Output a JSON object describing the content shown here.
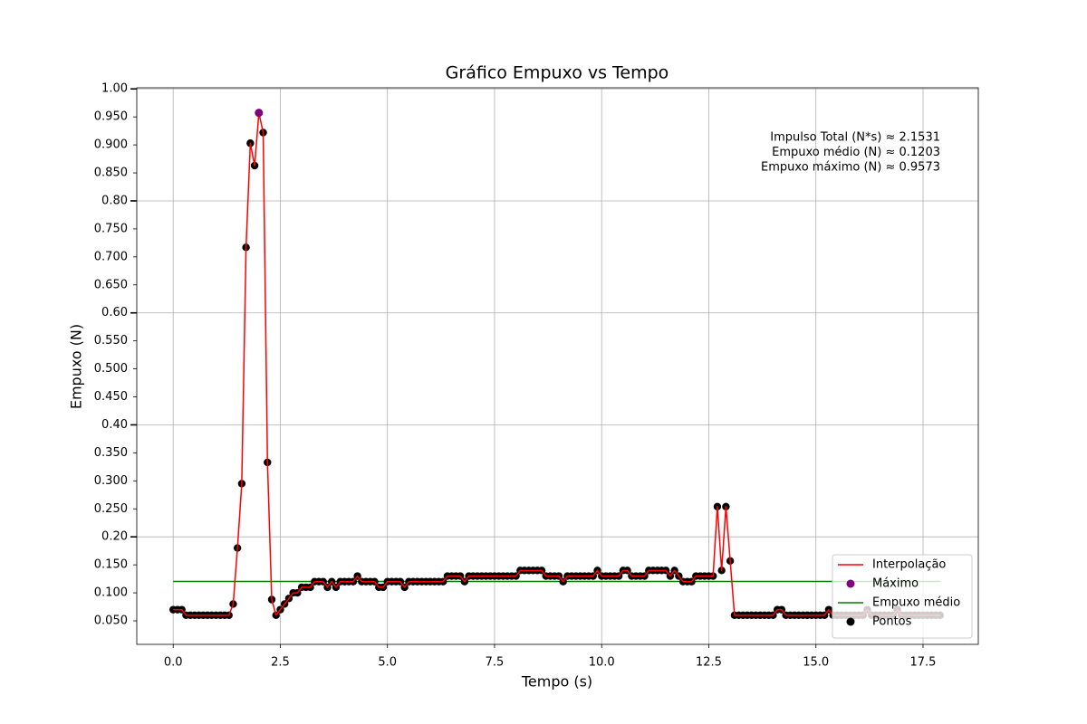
{
  "chart_data": {
    "type": "line",
    "title": "Gráfico Empuxo vs Tempo",
    "x_label": "Tempo (s)",
    "y_label": "Empuxo (N)",
    "annotations": [
      "Impulso Total (N*s) ≈ 2.1531",
      "Empuxo médio (N) ≈ 0.1203",
      "Empuxo máximo (N) ≈ 0.9573"
    ],
    "xlim": [
      -0.85,
      18.79
    ],
    "ylim": [
      0.008,
      1.002
    ],
    "xticks": [
      {
        "value": 0,
        "label": "0.0"
      },
      {
        "value": 2.5,
        "label": "2.5"
      },
      {
        "value": 5,
        "label": "5.0"
      },
      {
        "value": 7.5,
        "label": "7.5"
      },
      {
        "value": 10,
        "label": "10.0"
      },
      {
        "value": 12.5,
        "label": "12.5"
      },
      {
        "value": 15,
        "label": "15.0"
      },
      {
        "value": 17.5,
        "label": "17.5"
      }
    ],
    "yticks": [
      {
        "value": 0.05,
        "label": "0.050"
      },
      {
        "value": 0.1,
        "label": "0.100"
      },
      {
        "value": 0.15,
        "label": "0.150"
      },
      {
        "value": 0.2,
        "label": "0.20",
        "grid": true
      },
      {
        "value": 0.25,
        "label": "0.250"
      },
      {
        "value": 0.3,
        "label": "0.300"
      },
      {
        "value": 0.35,
        "label": "0.350"
      },
      {
        "value": 0.4,
        "label": "0.40",
        "grid": true
      },
      {
        "value": 0.45,
        "label": "0.450"
      },
      {
        "value": 0.5,
        "label": "0.500"
      },
      {
        "value": 0.55,
        "label": "0.550"
      },
      {
        "value": 0.6,
        "label": "0.60",
        "grid": true
      },
      {
        "value": 0.65,
        "label": "0.650"
      },
      {
        "value": 0.7,
        "label": "0.700"
      },
      {
        "value": 0.75,
        "label": "0.750"
      },
      {
        "value": 0.8,
        "label": "0.80",
        "grid": true
      },
      {
        "value": 0.85,
        "label": "0.850"
      },
      {
        "value": 0.9,
        "label": "0.900"
      },
      {
        "value": 0.95,
        "label": "0.950"
      },
      {
        "value": 1.0,
        "label": "1.00",
        "grid": true
      }
    ],
    "grid": true,
    "legend_position": "lower right",
    "series": [
      {
        "name": "Interpolação",
        "color": "#ff0000",
        "kind": "curve"
      },
      {
        "name": "Máximo",
        "color": "#800080",
        "kind": "marker",
        "x": [
          2.0
        ],
        "values": [
          0.9573
        ]
      },
      {
        "name": "Empuxo médio",
        "color": "#008000",
        "kind": "line",
        "x": [
          0,
          17.9
        ],
        "values": [
          0.1203,
          0.1203
        ]
      },
      {
        "name": "Pontos",
        "color": "#000000",
        "kind": "points",
        "x": [
          0,
          0.1,
          0.2,
          0.3,
          0.4,
          0.5,
          0.6,
          0.7,
          0.8,
          0.9,
          1,
          1.1,
          1.2,
          1.3,
          1.4,
          1.5,
          1.6,
          1.7,
          1.8,
          1.9,
          2,
          2.1,
          2.2,
          2.3,
          2.4,
          2.5,
          2.6,
          2.7,
          2.8,
          2.9,
          3,
          3.1,
          3.2,
          3.3,
          3.4,
          3.5,
          3.6,
          3.7,
          3.8,
          3.9,
          4,
          4.1,
          4.2,
          4.3,
          4.4,
          4.5,
          4.6,
          4.7,
          4.8,
          4.9,
          5,
          5.1,
          5.2,
          5.3,
          5.4,
          5.5,
          5.6,
          5.7,
          5.8,
          5.9,
          6,
          6.1,
          6.2,
          6.3,
          6.4,
          6.5,
          6.6,
          6.7,
          6.8,
          6.9,
          7,
          7.1,
          7.2,
          7.3,
          7.4,
          7.5,
          7.6,
          7.7,
          7.8,
          7.9,
          8,
          8.1,
          8.2,
          8.3,
          8.4,
          8.5,
          8.6,
          8.7,
          8.8,
          8.9,
          9,
          9.1,
          9.2,
          9.3,
          9.4,
          9.5,
          9.6,
          9.7,
          9.8,
          9.9,
          10,
          10.1,
          10.2,
          10.3,
          10.4,
          10.5,
          10.6,
          10.7,
          10.8,
          10.9,
          11,
          11.1,
          11.2,
          11.3,
          11.4,
          11.5,
          11.6,
          11.7,
          11.8,
          11.9,
          12,
          12.1,
          12.2,
          12.3,
          12.4,
          12.5,
          12.6,
          12.7,
          12.8,
          12.9,
          13,
          13.1,
          13.2,
          13.3,
          13.4,
          13.5,
          13.6,
          13.7,
          13.8,
          13.9,
          14,
          14.1,
          14.2,
          14.3,
          14.4,
          14.5,
          14.6,
          14.7,
          14.8,
          14.9,
          15,
          15.1,
          15.2,
          15.3,
          15.4,
          15.5,
          15.6,
          15.7,
          15.8,
          15.9,
          16,
          16.1,
          16.2,
          16.3,
          16.4,
          16.5,
          16.6,
          16.7,
          16.8,
          16.9,
          17,
          17.1,
          17.2,
          17.3,
          17.4,
          17.5,
          17.6,
          17.7,
          17.8,
          17.9
        ],
        "values": [
          0.07,
          0.07,
          0.07,
          0.06,
          0.06,
          0.06,
          0.06,
          0.06,
          0.06,
          0.06,
          0.06,
          0.06,
          0.06,
          0.06,
          0.08,
          0.18,
          0.295,
          0.717,
          0.903,
          0.863,
          0.957,
          0.922,
          0.333,
          0.088,
          0.06,
          0.07,
          0.08,
          0.09,
          0.1,
          0.1,
          0.11,
          0.11,
          0.11,
          0.12,
          0.12,
          0.12,
          0.11,
          0.12,
          0.11,
          0.12,
          0.12,
          0.12,
          0.12,
          0.13,
          0.12,
          0.12,
          0.12,
          0.12,
          0.11,
          0.11,
          0.12,
          0.12,
          0.12,
          0.12,
          0.11,
          0.12,
          0.12,
          0.12,
          0.12,
          0.12,
          0.12,
          0.12,
          0.12,
          0.12,
          0.13,
          0.13,
          0.13,
          0.13,
          0.12,
          0.13,
          0.13,
          0.13,
          0.13,
          0.13,
          0.13,
          0.13,
          0.13,
          0.13,
          0.13,
          0.13,
          0.13,
          0.14,
          0.14,
          0.14,
          0.14,
          0.14,
          0.14,
          0.13,
          0.13,
          0.13,
          0.13,
          0.12,
          0.13,
          0.13,
          0.13,
          0.13,
          0.13,
          0.13,
          0.13,
          0.14,
          0.13,
          0.13,
          0.13,
          0.13,
          0.13,
          0.14,
          0.14,
          0.13,
          0.13,
          0.13,
          0.13,
          0.14,
          0.14,
          0.14,
          0.14,
          0.14,
          0.13,
          0.14,
          0.13,
          0.12,
          0.12,
          0.12,
          0.13,
          0.13,
          0.13,
          0.13,
          0.13,
          0.254,
          0.14,
          0.254,
          0.157,
          0.06,
          0.06,
          0.06,
          0.06,
          0.06,
          0.06,
          0.06,
          0.06,
          0.06,
          0.06,
          0.07,
          0.07,
          0.06,
          0.06,
          0.06,
          0.06,
          0.06,
          0.06,
          0.06,
          0.06,
          0.06,
          0.06,
          0.07,
          0.06,
          0.06,
          0.06,
          0.06,
          0.06,
          0.06,
          0.06,
          0.06,
          0.07,
          0.06,
          0.06,
          0.06,
          0.06,
          0.06,
          0.06,
          0.07,
          0.06,
          0.06,
          0.06,
          0.06,
          0.06,
          0.06,
          0.06,
          0.06,
          0.06,
          0.06
        ]
      }
    ]
  }
}
